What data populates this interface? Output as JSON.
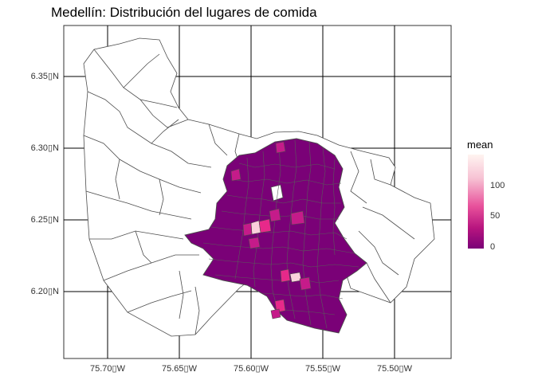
{
  "title": "Medellín: Distribución del lugares de comida",
  "y_axis": {
    "ticks": [
      "6.35▯N",
      "6.30▯N",
      "6.25▯N",
      "6.20▯N"
    ]
  },
  "x_axis": {
    "ticks": [
      "75.70▯W",
      "75.65▯W",
      "75.60▯W",
      "75.55▯W",
      "75.50▯W"
    ]
  },
  "legend": {
    "title": "mean",
    "ticks": [
      "100",
      "50",
      "0"
    ],
    "colors": {
      "high": "#fff4f1",
      "mid": "#e8519b",
      "low": "#7a0177"
    }
  },
  "map": {
    "background": "#ffffff",
    "grid_color": "#000000",
    "outline_color": "#4d4d4d",
    "fill_low": "#7a0177",
    "fill_mid": "#c51b8a",
    "fill_high": "#fbb4c9"
  }
}
